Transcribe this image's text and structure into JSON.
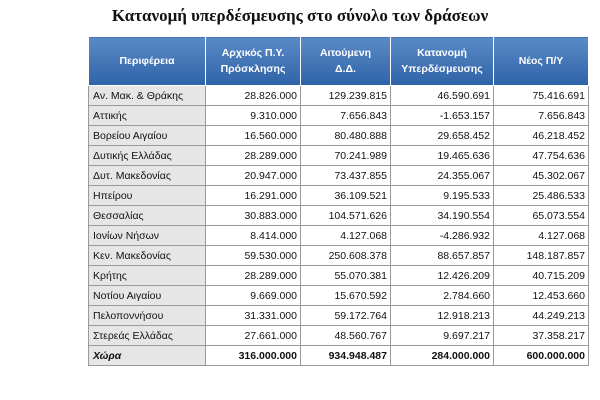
{
  "title": "Κατανομή υπερδέσμευσης στο σύνολο των δράσεων",
  "table": {
    "header": [
      [
        "Περιφέρεια"
      ],
      [
        "Αρχικός Π.Υ.",
        "Πρόσκλησης"
      ],
      [
        "Αιτούμενη",
        "Δ.Δ."
      ],
      [
        "Κατανομή",
        "Υπερδέσμευσης"
      ],
      [
        "Νέος Π/Υ"
      ]
    ],
    "rows": [
      [
        "Αν. Μακ. & Θράκης",
        "28.826.000",
        "129.239.815",
        "46.590.691",
        "75.416.691"
      ],
      [
        "Αττικής",
        "9.310.000",
        "7.656.843",
        "-1.653.157",
        "7.656.843"
      ],
      [
        "Βορείου Αιγαίου",
        "16.560.000",
        "80.480.888",
        "29.658.452",
        "46.218.452"
      ],
      [
        "Δυτικής Ελλάδας",
        "28.289.000",
        "70.241.989",
        "19.465.636",
        "47.754.636"
      ],
      [
        "Δυτ. Μακεδονίας",
        "20.947.000",
        "73.437.855",
        "24.355.067",
        "45.302.067"
      ],
      [
        "Ηπείρου",
        "16.291.000",
        "36.109.521",
        "9.195.533",
        "25.486.533"
      ],
      [
        "Θεσσαλίας",
        "30.883.000",
        "104.571.626",
        "34.190.554",
        "65.073.554"
      ],
      [
        "Ιονίων Νήσων",
        "8.414.000",
        "4.127.068",
        "-4.286.932",
        "4.127.068"
      ],
      [
        "Κεν. Μακεδονίας",
        "59.530.000",
        "250.608.378",
        "88.657.857",
        "148.187.857"
      ],
      [
        "Κρήτης",
        "28.289.000",
        "55.070.381",
        "12.426.209",
        "40.715.209"
      ],
      [
        "Νοτίου Αιγαίου",
        "9.669.000",
        "15.670.592",
        "2.784.660",
        "12.453.660"
      ],
      [
        "Πελοποννήσου",
        "31.331.000",
        "59.172.764",
        "12.918.213",
        "44.249.213"
      ],
      [
        "Στερεάς Ελλάδας",
        "27.661.000",
        "48.560.767",
        "9.697.217",
        "37.358.217"
      ]
    ],
    "total": [
      "Χώρα",
      "316.000.000",
      "934.948.487",
      "284.000.000",
      "600.000.000"
    ]
  }
}
